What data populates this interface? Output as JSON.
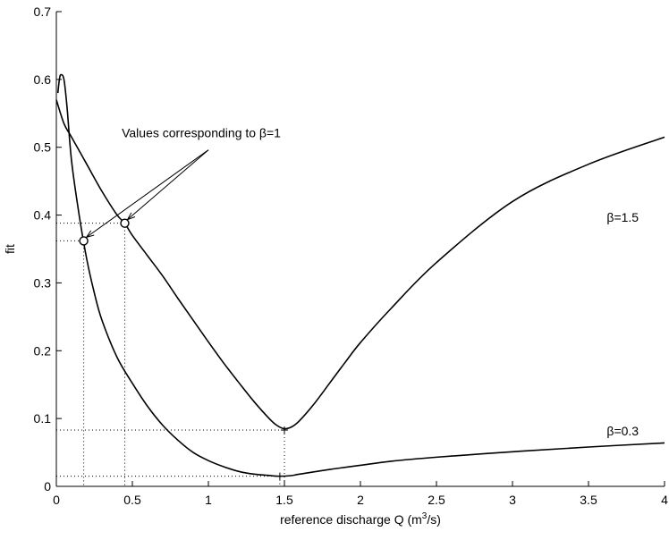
{
  "chart_data": {
    "type": "line",
    "title": "",
    "xlabel": {
      "base": "reference discharge Q (m",
      "sup": "3",
      "tail": "/s)"
    },
    "ylabel": "fit",
    "xlim": [
      0,
      4
    ],
    "ylim": [
      0,
      0.7
    ],
    "xticks": [
      0,
      0.5,
      1,
      1.5,
      2,
      2.5,
      3,
      3.5,
      4
    ],
    "xtick_labels": [
      "0",
      "0.5",
      "1",
      "1.5",
      "2",
      "2.5",
      "3",
      "3.5",
      "4"
    ],
    "yticks": [
      0,
      0.1,
      0.2,
      0.3,
      0.4,
      0.5,
      0.6,
      0.7
    ],
    "ytick_labels": [
      "0",
      "0.1",
      "0.2",
      "0.3",
      "0.4",
      "0.5",
      "0.6",
      "0.7"
    ],
    "grid": false,
    "legend": "none",
    "line_color": "#000000",
    "series": [
      {
        "name": "β=0.3",
        "label": "β=0.3",
        "x": [
          0.01,
          0.02,
          0.03,
          0.05,
          0.07,
          0.1,
          0.15,
          0.2,
          0.25,
          0.3,
          0.4,
          0.5,
          0.6,
          0.7,
          0.8,
          0.9,
          1.0,
          1.1,
          1.2,
          1.3,
          1.4,
          1.47,
          1.55,
          1.6,
          1.8,
          2.0,
          2.2,
          2.5,
          3.0,
          3.5,
          4.0
        ],
        "y": [
          0.58,
          0.6,
          0.607,
          0.6,
          0.56,
          0.48,
          0.4,
          0.335,
          0.285,
          0.245,
          0.19,
          0.152,
          0.118,
          0.09,
          0.068,
          0.05,
          0.038,
          0.029,
          0.022,
          0.018,
          0.016,
          0.015,
          0.016,
          0.018,
          0.025,
          0.031,
          0.037,
          0.043,
          0.051,
          0.058,
          0.064
        ]
      },
      {
        "name": "β=1.5",
        "label": "β=1.5",
        "x": [
          0.0,
          0.05,
          0.1,
          0.2,
          0.3,
          0.4,
          0.45,
          0.5,
          0.6,
          0.7,
          0.8,
          0.9,
          1.0,
          1.1,
          1.2,
          1.3,
          1.4,
          1.45,
          1.5,
          1.55,
          1.6,
          1.7,
          1.8,
          1.9,
          2.0,
          2.2,
          2.5,
          3.0,
          3.5,
          4.0
        ],
        "y": [
          0.57,
          0.535,
          0.515,
          0.475,
          0.435,
          0.4,
          0.388,
          0.37,
          0.34,
          0.31,
          0.277,
          0.245,
          0.213,
          0.182,
          0.153,
          0.125,
          0.1,
          0.09,
          0.085,
          0.088,
          0.097,
          0.123,
          0.153,
          0.183,
          0.212,
          0.262,
          0.33,
          0.42,
          0.475,
          0.515
        ]
      }
    ],
    "markers": [
      {
        "x": 0.18,
        "y": 0.362
      },
      {
        "x": 0.45,
        "y": 0.388
      }
    ],
    "reference_points": [
      {
        "x": 0.18,
        "y": 0.362
      },
      {
        "x": 0.45,
        "y": 0.388
      },
      {
        "x": 1.5,
        "y": 0.083
      },
      {
        "x": 1.47,
        "y": 0.015
      }
    ],
    "annotations": [
      {
        "text": "Values corresponding to β=1",
        "x": 0.43,
        "y": 0.515
      },
      {
        "text": "β=1.5",
        "x": 3.62,
        "y": 0.39
      },
      {
        "text": "β=0.3",
        "x": 3.62,
        "y": 0.075
      }
    ]
  }
}
